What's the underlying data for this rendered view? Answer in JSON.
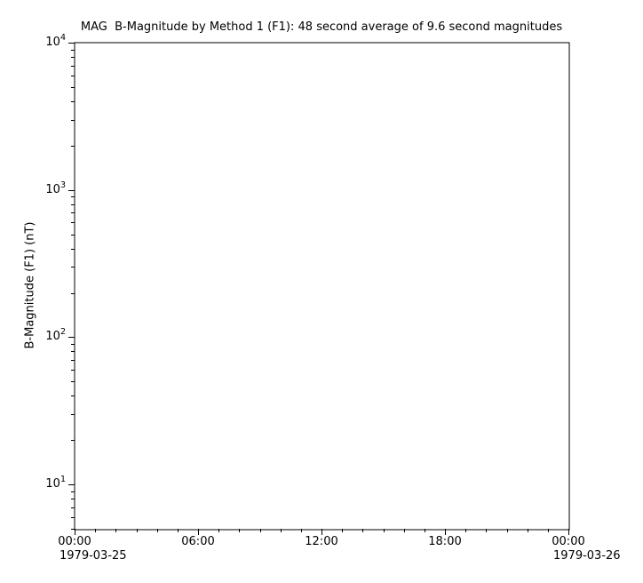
{
  "chart_data": {
    "type": "line",
    "title": "MAG  B-Magnitude by Method 1 (F1): 48 second average of 9.6 second magnitudes",
    "xlabel": "",
    "ylabel": "B-Magnitude (F1) (nT)",
    "y_scale": "log",
    "ylim": [
      5,
      10000
    ],
    "y_major_ticks": [
      10000,
      1000,
      100,
      10
    ],
    "y_minor_mantissas": [
      2,
      3,
      4,
      5,
      6,
      7,
      8,
      9
    ],
    "x_unit": "time-of-day-hours",
    "xlim_hours": [
      0,
      24
    ],
    "x_major_ticks": [
      {
        "hour": 0,
        "label": "00:00"
      },
      {
        "hour": 6,
        "label": "06:00"
      },
      {
        "hour": 12,
        "label": "12:00"
      },
      {
        "hour": 18,
        "label": "18:00"
      },
      {
        "hour": 24,
        "label": "00:00"
      }
    ],
    "x_minor_tick_interval_hours": 1,
    "x_start_date": "1979-03-25",
    "x_end_date": "1979-03-26",
    "grid": false,
    "legend_position": null,
    "series": [],
    "axes_color": "#000000",
    "text_color": "#000000",
    "background_color": "#ffffff"
  }
}
